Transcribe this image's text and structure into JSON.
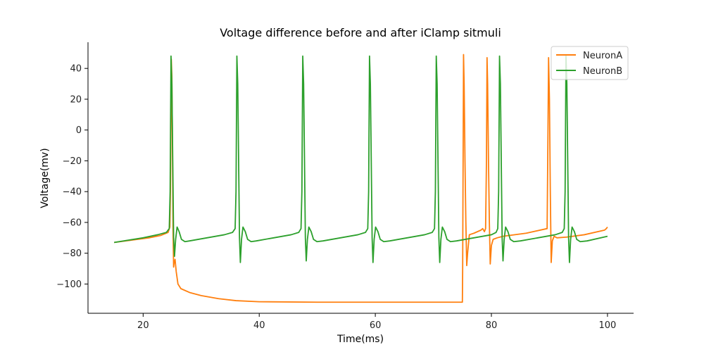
{
  "chart_data": {
    "type": "line",
    "title": "Voltage difference before and after iClamp sitmuli",
    "xlabel": "Time(ms)",
    "ylabel": "Voltage(mv)",
    "xlim": [
      10.5,
      104.5
    ],
    "ylim": [
      -119,
      57
    ],
    "xticks": [
      20,
      40,
      60,
      80,
      100
    ],
    "yticks": [
      -100,
      -80,
      -60,
      -40,
      -20,
      0,
      20,
      40
    ],
    "grid": false,
    "legend_position": "top-right",
    "series": [
      {
        "name": "NeuronA",
        "color": "#ff7f0e",
        "points": [
          [
            15,
            -73
          ],
          [
            18,
            -71.5
          ],
          [
            21,
            -70
          ],
          [
            23,
            -68.5
          ],
          [
            24.3,
            -66.5
          ],
          [
            24.6,
            -63
          ],
          [
            24.7,
            -40
          ],
          [
            24.8,
            10
          ],
          [
            24.85,
            46
          ],
          [
            24.95,
            35
          ],
          [
            25.05,
            -10
          ],
          [
            25.15,
            -65
          ],
          [
            25.25,
            -89
          ],
          [
            25.35,
            -86
          ],
          [
            25.5,
            -84
          ],
          [
            25.7,
            -92
          ],
          [
            26.0,
            -100
          ],
          [
            26.5,
            -103
          ],
          [
            28,
            -105.5
          ],
          [
            30,
            -107.5
          ],
          [
            33,
            -109.5
          ],
          [
            36,
            -110.8
          ],
          [
            40,
            -111.5
          ],
          [
            50,
            -111.8
          ],
          [
            60,
            -111.8
          ],
          [
            70,
            -111.8
          ],
          [
            75.0,
            -111.8
          ],
          [
            75.05,
            -90
          ],
          [
            75.15,
            0
          ],
          [
            75.2,
            49
          ],
          [
            75.3,
            30
          ],
          [
            75.45,
            -20
          ],
          [
            75.6,
            -60
          ],
          [
            75.75,
            -88
          ],
          [
            75.9,
            -80
          ],
          [
            76.2,
            -68
          ],
          [
            77,
            -67
          ],
          [
            78.2,
            -65
          ],
          [
            78.5,
            -64
          ],
          [
            78.8,
            -66
          ],
          [
            79.0,
            -64
          ],
          [
            79.15,
            -20
          ],
          [
            79.25,
            47
          ],
          [
            79.35,
            30
          ],
          [
            79.5,
            -20
          ],
          [
            79.65,
            -60
          ],
          [
            79.8,
            -87
          ],
          [
            80.0,
            -75
          ],
          [
            80.3,
            -71
          ],
          [
            81,
            -70
          ],
          [
            82,
            -69
          ],
          [
            86,
            -67
          ],
          [
            89.6,
            -64
          ],
          [
            89.75,
            0
          ],
          [
            89.85,
            47
          ],
          [
            90.0,
            20
          ],
          [
            90.15,
            -40
          ],
          [
            90.3,
            -86
          ],
          [
            90.5,
            -72
          ],
          [
            90.8,
            -69
          ],
          [
            91.3,
            -70
          ],
          [
            93,
            -69.5
          ],
          [
            96,
            -68
          ],
          [
            99.5,
            -65
          ],
          [
            99.8,
            -64
          ],
          [
            100,
            -63
          ]
        ]
      },
      {
        "name": "NeuronB",
        "color": "#2ca02c",
        "points": [
          [
            15,
            -73
          ],
          [
            20,
            -70
          ],
          [
            22.5,
            -68
          ],
          [
            24.0,
            -66.5
          ],
          [
            24.5,
            -64
          ],
          [
            24.65,
            -40
          ],
          [
            24.8,
            48
          ],
          [
            24.95,
            30
          ],
          [
            25.1,
            -20
          ],
          [
            25.25,
            -70
          ],
          [
            25.4,
            -82
          ],
          [
            25.6,
            -71
          ],
          [
            25.85,
            -63
          ],
          [
            26.2,
            -66
          ],
          [
            26.6,
            -71
          ],
          [
            27.2,
            -72.5
          ],
          [
            28,
            -72
          ],
          [
            31,
            -70
          ],
          [
            34,
            -68
          ],
          [
            35.4,
            -66.5
          ],
          [
            35.85,
            -64
          ],
          [
            36.0,
            -40
          ],
          [
            36.15,
            48
          ],
          [
            36.3,
            30
          ],
          [
            36.45,
            -20
          ],
          [
            36.6,
            -70
          ],
          [
            36.75,
            -86
          ],
          [
            36.95,
            -71
          ],
          [
            37.2,
            -63
          ],
          [
            37.6,
            -66
          ],
          [
            38.0,
            -71
          ],
          [
            38.6,
            -72.5
          ],
          [
            39.5,
            -72
          ],
          [
            42.5,
            -70
          ],
          [
            45.5,
            -68
          ],
          [
            46.8,
            -66.5
          ],
          [
            47.2,
            -64
          ],
          [
            47.35,
            -40
          ],
          [
            47.5,
            48
          ],
          [
            47.65,
            30
          ],
          [
            47.8,
            -20
          ],
          [
            47.95,
            -70
          ],
          [
            48.1,
            -85
          ],
          [
            48.3,
            -71
          ],
          [
            48.55,
            -63
          ],
          [
            48.95,
            -66
          ],
          [
            49.35,
            -71
          ],
          [
            49.95,
            -72.5
          ],
          [
            51,
            -72
          ],
          [
            54,
            -70
          ],
          [
            57,
            -68
          ],
          [
            58.3,
            -66.5
          ],
          [
            58.7,
            -64
          ],
          [
            58.85,
            -40
          ],
          [
            59.0,
            48
          ],
          [
            59.15,
            30
          ],
          [
            59.3,
            -20
          ],
          [
            59.45,
            -70
          ],
          [
            59.6,
            -86
          ],
          [
            59.8,
            -71
          ],
          [
            60.05,
            -63
          ],
          [
            60.45,
            -66
          ],
          [
            60.85,
            -71
          ],
          [
            61.45,
            -72.5
          ],
          [
            62.5,
            -72
          ],
          [
            65.5,
            -70
          ],
          [
            68.5,
            -68
          ],
          [
            69.8,
            -66.5
          ],
          [
            70.2,
            -64
          ],
          [
            70.35,
            -40
          ],
          [
            70.5,
            48
          ],
          [
            70.65,
            30
          ],
          [
            70.8,
            -20
          ],
          [
            70.95,
            -70
          ],
          [
            71.1,
            -86
          ],
          [
            71.3,
            -71
          ],
          [
            71.55,
            -63
          ],
          [
            71.95,
            -66
          ],
          [
            72.35,
            -71
          ],
          [
            72.95,
            -72.5
          ],
          [
            74,
            -72
          ],
          [
            77,
            -70
          ],
          [
            80,
            -68
          ],
          [
            80.8,
            -66.5
          ],
          [
            81.1,
            -64
          ],
          [
            81.25,
            -40
          ],
          [
            81.4,
            48
          ],
          [
            81.55,
            30
          ],
          [
            81.7,
            -20
          ],
          [
            81.85,
            -70
          ],
          [
            82.0,
            -85
          ],
          [
            82.2,
            -71
          ],
          [
            82.45,
            -63
          ],
          [
            82.85,
            -66
          ],
          [
            83.25,
            -71
          ],
          [
            83.85,
            -72.5
          ],
          [
            85,
            -72
          ],
          [
            88,
            -70
          ],
          [
            91,
            -68
          ],
          [
            92.2,
            -66.5
          ],
          [
            92.55,
            -64
          ],
          [
            92.7,
            -40
          ],
          [
            92.85,
            48
          ],
          [
            93.0,
            30
          ],
          [
            93.15,
            -20
          ],
          [
            93.3,
            -70
          ],
          [
            93.45,
            -86
          ],
          [
            93.65,
            -71
          ],
          [
            93.9,
            -63
          ],
          [
            94.3,
            -66
          ],
          [
            94.7,
            -71
          ],
          [
            95.3,
            -72.5
          ],
          [
            96.5,
            -72
          ],
          [
            100,
            -69
          ]
        ]
      }
    ]
  }
}
